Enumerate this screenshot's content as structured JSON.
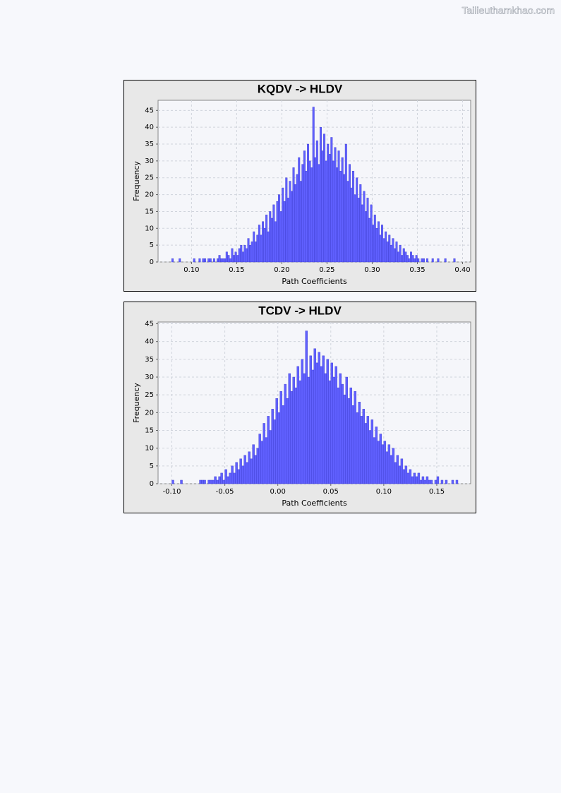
{
  "watermark": "Tailieuthamkhao.com",
  "chart_data": [
    {
      "type": "histogram",
      "title": "KQDV -> HLDV",
      "x_label": "Path Coefficients",
      "y_label": "Frequency",
      "color": "#6060ff",
      "grid": true,
      "xlim": [
        0.063,
        0.409
      ],
      "ylim": [
        0,
        48
      ],
      "xticks": [
        {
          "value": 0.1,
          "label": "0.10"
        },
        {
          "value": 0.15,
          "label": "0.15"
        },
        {
          "value": 0.2,
          "label": "0.20"
        },
        {
          "value": 0.25,
          "label": "0.25"
        },
        {
          "value": 0.3,
          "label": "0.30"
        },
        {
          "value": 0.35,
          "label": "0.35"
        },
        {
          "value": 0.4,
          "label": "0.40"
        }
      ],
      "yticks": [
        0,
        5,
        10,
        15,
        20,
        25,
        30,
        35,
        40,
        45
      ],
      "bins": [
        0.076,
        0.078,
        0.08,
        0.082,
        0.084,
        0.086,
        0.088,
        0.09,
        0.092,
        0.094,
        0.096,
        0.098,
        0.1,
        0.102,
        0.104,
        0.106,
        0.108,
        0.11,
        0.112,
        0.114,
        0.116,
        0.118,
        0.12,
        0.122,
        0.124,
        0.126,
        0.128,
        0.13,
        0.132,
        0.134,
        0.136,
        0.138,
        0.14,
        0.142,
        0.144,
        0.146,
        0.148,
        0.15,
        0.152,
        0.154,
        0.156,
        0.158,
        0.16,
        0.162,
        0.164,
        0.166,
        0.168,
        0.17,
        0.172,
        0.174,
        0.176,
        0.178,
        0.18,
        0.182,
        0.184,
        0.186,
        0.188,
        0.19,
        0.192,
        0.194,
        0.196,
        0.198,
        0.2,
        0.202,
        0.204,
        0.206,
        0.208,
        0.21,
        0.212,
        0.214,
        0.216,
        0.218,
        0.22,
        0.222,
        0.224,
        0.226,
        0.228,
        0.23,
        0.232,
        0.234,
        0.236,
        0.238,
        0.24,
        0.242,
        0.244,
        0.246,
        0.248,
        0.25,
        0.252,
        0.254,
        0.256,
        0.258,
        0.26,
        0.262,
        0.264,
        0.266,
        0.268,
        0.27,
        0.272,
        0.274,
        0.276,
        0.278,
        0.28,
        0.282,
        0.284,
        0.286,
        0.288,
        0.29,
        0.292,
        0.294,
        0.296,
        0.298,
        0.3,
        0.302,
        0.304,
        0.306,
        0.308,
        0.31,
        0.312,
        0.314,
        0.316,
        0.318,
        0.32,
        0.322,
        0.324,
        0.326,
        0.328,
        0.33,
        0.332,
        0.334,
        0.336,
        0.338,
        0.34,
        0.342,
        0.344,
        0.346,
        0.348,
        0.35,
        0.352,
        0.354,
        0.356,
        0.358,
        0.36,
        0.362,
        0.364,
        0.366,
        0.368,
        0.37,
        0.372,
        0.374,
        0.376,
        0.378,
        0.38,
        0.382,
        0.384,
        0.386,
        0.388,
        0.39,
        0.392,
        0.394,
        0.396
      ],
      "values": [
        0,
        1,
        0,
        0,
        0,
        1,
        0,
        0,
        0,
        0,
        0,
        0,
        0,
        1,
        0,
        0,
        1,
        0,
        1,
        1,
        0,
        1,
        1,
        0,
        1,
        0,
        1,
        2,
        1,
        1,
        1,
        3,
        2,
        1,
        4,
        2,
        3,
        2,
        4,
        5,
        3,
        5,
        4,
        7,
        5,
        6,
        9,
        6,
        8,
        11,
        8,
        12,
        10,
        14,
        9,
        15,
        13,
        17,
        12,
        18,
        20,
        15,
        22,
        18,
        25,
        19,
        24,
        21,
        28,
        23,
        26,
        31,
        24,
        29,
        33,
        27,
        35,
        30,
        28,
        46,
        31,
        36,
        29,
        40,
        33,
        38,
        30,
        35,
        32,
        37,
        30,
        34,
        28,
        33,
        27,
        31,
        26,
        35,
        24,
        29,
        22,
        27,
        20,
        25,
        19,
        23,
        17,
        21,
        15,
        19,
        13,
        17,
        11,
        14,
        10,
        12,
        8,
        11,
        7,
        9,
        6,
        8,
        5,
        7,
        4,
        6,
        3,
        5,
        2,
        4,
        3,
        2,
        1,
        3,
        2,
        1,
        2,
        1,
        0,
        1,
        1,
        0,
        1,
        0,
        0,
        1,
        0,
        0,
        1,
        0,
        0,
        0,
        1,
        0,
        0,
        0,
        0,
        1,
        0,
        0
      ]
    },
    {
      "type": "histogram",
      "title": "TCDV -> HLDV",
      "x_label": "Path Coefficients",
      "y_label": "Frequency",
      "color": "#6060ff",
      "grid": true,
      "xlim": [
        -0.113,
        0.182
      ],
      "ylim": [
        0,
        45.5
      ],
      "xticks": [
        {
          "value": -0.1,
          "label": "-0.10"
        },
        {
          "value": -0.05,
          "label": "-0.05"
        },
        {
          "value": 0,
          "label": "0.00"
        },
        {
          "value": 0.05,
          "label": "0.05"
        },
        {
          "value": 0.1,
          "label": "0.10"
        },
        {
          "value": 0.15,
          "label": "0.15"
        }
      ],
      "yticks": [
        0,
        5,
        10,
        15,
        20,
        25,
        30,
        35,
        40,
        45
      ],
      "bins": [
        -0.1,
        -0.098,
        -0.096,
        -0.094,
        -0.092,
        -0.09,
        -0.088,
        -0.086,
        -0.084,
        -0.082,
        -0.08,
        -0.078,
        -0.076,
        -0.074,
        -0.072,
        -0.07,
        -0.068,
        -0.066,
        -0.064,
        -0.062,
        -0.06,
        -0.058,
        -0.056,
        -0.054,
        -0.052,
        -0.05,
        -0.048,
        -0.046,
        -0.044,
        -0.042,
        -0.04,
        -0.038,
        -0.036,
        -0.034,
        -0.032,
        -0.03,
        -0.028,
        -0.026,
        -0.024,
        -0.022,
        -0.02,
        -0.018,
        -0.016,
        -0.014,
        -0.012,
        -0.01,
        -0.008,
        -0.006,
        -0.004,
        -0.002,
        0,
        0.002,
        0.004,
        0.006,
        0.008,
        0.01,
        0.012,
        0.014,
        0.016,
        0.018,
        0.02,
        0.022,
        0.024,
        0.026,
        0.028,
        0.03,
        0.032,
        0.034,
        0.036,
        0.038,
        0.04,
        0.042,
        0.044,
        0.046,
        0.048,
        0.05,
        0.052,
        0.054,
        0.056,
        0.058,
        0.06,
        0.062,
        0.064,
        0.066,
        0.068,
        0.07,
        0.072,
        0.074,
        0.076,
        0.078,
        0.08,
        0.082,
        0.084,
        0.086,
        0.088,
        0.09,
        0.092,
        0.094,
        0.096,
        0.098,
        0.1,
        0.102,
        0.104,
        0.106,
        0.108,
        0.11,
        0.112,
        0.114,
        0.116,
        0.118,
        0.12,
        0.122,
        0.124,
        0.126,
        0.128,
        0.13,
        0.132,
        0.134,
        0.136,
        0.138,
        0.14,
        0.142,
        0.144,
        0.146,
        0.148,
        0.15,
        0.152,
        0.154,
        0.156,
        0.158,
        0.16,
        0.162,
        0.164,
        0.166,
        0.168,
        0.17
      ],
      "values": [
        1,
        0,
        0,
        0,
        1,
        0,
        0,
        0,
        0,
        0,
        0,
        0,
        0,
        1,
        1,
        1,
        0,
        1,
        1,
        1,
        2,
        1,
        2,
        3,
        1,
        4,
        2,
        3,
        5,
        3,
        6,
        4,
        7,
        5,
        8,
        6,
        9,
        7,
        11,
        8,
        10,
        14,
        12,
        17,
        13,
        19,
        15,
        21,
        18,
        24,
        20,
        26,
        22,
        28,
        24,
        31,
        26,
        30,
        27,
        33,
        29,
        35,
        31,
        43,
        30,
        36,
        32,
        38,
        34,
        37,
        33,
        36,
        31,
        35,
        29,
        34,
        30,
        33,
        27,
        31,
        28,
        25,
        30,
        24,
        27,
        22,
        26,
        20,
        23,
        19,
        21,
        17,
        19,
        15,
        18,
        13,
        16,
        12,
        14,
        11,
        12,
        9,
        11,
        8,
        10,
        6,
        8,
        5,
        7,
        4,
        5,
        3,
        4,
        2,
        3,
        2,
        3,
        1,
        2,
        1,
        2,
        1,
        1,
        0,
        1,
        2,
        0,
        1,
        0,
        1,
        0,
        0,
        1,
        0,
        1
      ]
    }
  ]
}
